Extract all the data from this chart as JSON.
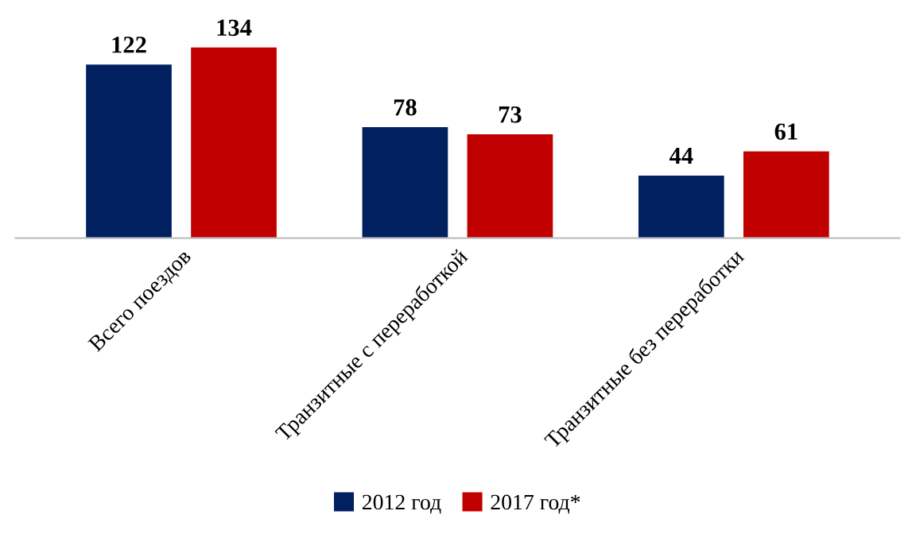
{
  "chart_data": {
    "type": "bar",
    "categories": [
      "Всего поездов",
      "Транзитные с переработкой",
      "Транзитные без переработки"
    ],
    "series": [
      {
        "name": "2012 год",
        "color": "#002060",
        "values": [
          122,
          78,
          44
        ]
      },
      {
        "name": "2017 год*",
        "color": "#c00000",
        "values": [
          134,
          73,
          61
        ]
      }
    ],
    "data_labels": true,
    "legend": "bottom",
    "grid": false
  }
}
